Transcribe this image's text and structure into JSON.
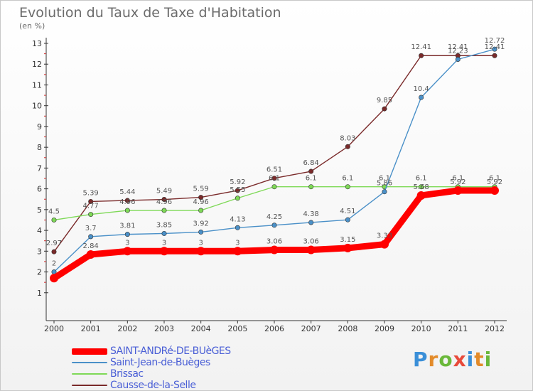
{
  "title": "Evolution du Taux de Taxe d'Habitation",
  "subtitle": "(en %)",
  "logo": {
    "letters": [
      "P",
      "r",
      "o",
      "x",
      "i",
      "t",
      "i"
    ],
    "colors": [
      "#3a8fd8",
      "#e38b2a",
      "#6ab83a",
      "#e84a3a",
      "#3a8fd8",
      "#e38b2a",
      "#6ab83a"
    ]
  },
  "chart_data": {
    "type": "line",
    "title": "Evolution du Taux de Taxe d'Habitation",
    "ylabel": "(en %)",
    "xlabel": "",
    "x": [
      "2000",
      "2001",
      "2002",
      "2003",
      "2004",
      "2005",
      "2006",
      "2007",
      "2008",
      "2009",
      "2010",
      "2011",
      "2012"
    ],
    "yticks": [
      "1",
      "2",
      "3",
      "4",
      "5",
      "6",
      "7",
      "8",
      "9",
      "10",
      "11",
      "12",
      "13"
    ],
    "ylim": [
      1,
      13
    ],
    "grid": false,
    "legend_position": "bottom-left",
    "series": [
      {
        "name": "SAINT-ANDRé-DE-BUèGES",
        "color": "#ff0000",
        "values": [
          1.7,
          2.84,
          3,
          3,
          3,
          3,
          3.06,
          3.06,
          3.15,
          3.33,
          5.68,
          5.92,
          5.92
        ],
        "labels": [
          "",
          "2.84",
          "3",
          "3",
          "3",
          "3",
          "3.06",
          "3.06",
          "3.15",
          "3.33",
          "5.68",
          "5.92",
          "5.92"
        ]
      },
      {
        "name": "Saint-Jean-de-Buèges",
        "color": "#4a90c8",
        "values": [
          2,
          3.7,
          3.81,
          3.85,
          3.92,
          4.13,
          4.25,
          4.38,
          4.51,
          5.86,
          10.4,
          12.23,
          12.72
        ],
        "labels": [
          "2",
          "3.7",
          "3.81",
          "3.85",
          "3.92",
          "4.13",
          "4.25",
          "4.38",
          "4.51",
          "5.86",
          "10.4",
          "12.23",
          "12.72"
        ]
      },
      {
        "name": "Brissac",
        "color": "#7ed957",
        "values": [
          4.5,
          4.77,
          4.96,
          4.96,
          4.96,
          5.55,
          6.1,
          6.1,
          6.1,
          6.1,
          6.1,
          6.1,
          6.1
        ],
        "labels": [
          "4.5",
          "4.77",
          "4.96",
          "4.96",
          "4.96",
          "5.55",
          "6.1",
          "6.1",
          "6.1",
          "6.1",
          "6.1",
          "6.1",
          "6.1"
        ]
      },
      {
        "name": "Causse-de-la-Selle",
        "color": "#7a2a2a",
        "values": [
          2.97,
          5.39,
          5.44,
          5.49,
          5.59,
          5.92,
          6.51,
          6.84,
          8.03,
          9.85,
          12.41,
          12.41,
          12.41
        ],
        "labels": [
          "2.97",
          "5.39",
          "5.44",
          "5.49",
          "5.59",
          "5.92",
          "6.51",
          "6.84",
          "8.03",
          "9.85",
          "12.41",
          "12.41",
          "12.41"
        ]
      }
    ]
  }
}
